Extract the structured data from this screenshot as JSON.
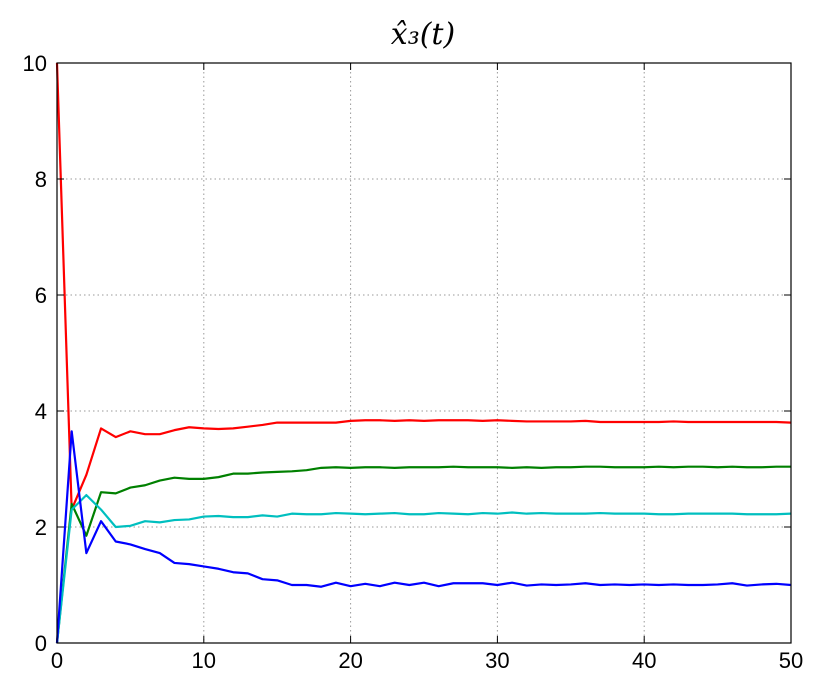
{
  "chart_data": {
    "type": "line",
    "title": "x̂₃(t)",
    "xlabel": "",
    "ylabel": "",
    "xlim": [
      0,
      50
    ],
    "ylim": [
      0,
      10
    ],
    "xticks": [
      0,
      10,
      20,
      30,
      40,
      50
    ],
    "yticks": [
      0,
      2,
      4,
      6,
      8,
      10
    ],
    "grid": true,
    "x": [
      0,
      1,
      2,
      3,
      4,
      5,
      6,
      7,
      8,
      9,
      10,
      11,
      12,
      13,
      14,
      15,
      16,
      17,
      18,
      19,
      20,
      21,
      22,
      23,
      24,
      25,
      26,
      27,
      28,
      29,
      30,
      31,
      32,
      33,
      34,
      35,
      36,
      37,
      38,
      39,
      40,
      41,
      42,
      43,
      44,
      45,
      46,
      47,
      48,
      49,
      50
    ],
    "series": [
      {
        "color": "#ff0000",
        "values": [
          10,
          2.3,
          2.9,
          3.7,
          3.55,
          3.65,
          3.6,
          3.6,
          3.67,
          3.72,
          3.7,
          3.69,
          3.7,
          3.73,
          3.76,
          3.8,
          3.8,
          3.8,
          3.8,
          3.8,
          3.83,
          3.84,
          3.84,
          3.83,
          3.84,
          3.83,
          3.84,
          3.84,
          3.84,
          3.83,
          3.84,
          3.83,
          3.82,
          3.82,
          3.82,
          3.82,
          3.83,
          3.81,
          3.81,
          3.81,
          3.81,
          3.81,
          3.82,
          3.81,
          3.81,
          3.81,
          3.81,
          3.81,
          3.81,
          3.81,
          3.8
        ]
      },
      {
        "color": "#008000",
        "values": [
          0,
          2.4,
          1.85,
          2.6,
          2.58,
          2.68,
          2.72,
          2.8,
          2.85,
          2.83,
          2.83,
          2.86,
          2.92,
          2.92,
          2.94,
          2.95,
          2.96,
          2.98,
          3.02,
          3.03,
          3.02,
          3.03,
          3.03,
          3.02,
          3.03,
          3.03,
          3.03,
          3.04,
          3.03,
          3.03,
          3.03,
          3.02,
          3.03,
          3.02,
          3.03,
          3.03,
          3.04,
          3.04,
          3.03,
          3.03,
          3.03,
          3.04,
          3.03,
          3.04,
          3.04,
          3.03,
          3.04,
          3.03,
          3.03,
          3.04,
          3.04
        ]
      },
      {
        "color": "#00bfbf",
        "values": [
          0,
          2.3,
          2.55,
          2.3,
          2.0,
          2.02,
          2.1,
          2.08,
          2.12,
          2.13,
          2.18,
          2.19,
          2.17,
          2.17,
          2.2,
          2.18,
          2.23,
          2.22,
          2.22,
          2.24,
          2.23,
          2.22,
          2.23,
          2.24,
          2.22,
          2.22,
          2.24,
          2.23,
          2.22,
          2.24,
          2.23,
          2.25,
          2.23,
          2.24,
          2.23,
          2.23,
          2.23,
          2.24,
          2.23,
          2.23,
          2.23,
          2.22,
          2.22,
          2.23,
          2.23,
          2.23,
          2.23,
          2.22,
          2.22,
          2.22,
          2.23
        ]
      },
      {
        "color": "#0000ff",
        "values": [
          0,
          3.65,
          1.55,
          2.1,
          1.75,
          1.7,
          1.62,
          1.55,
          1.38,
          1.36,
          1.32,
          1.28,
          1.22,
          1.2,
          1.1,
          1.08,
          1.0,
          1.0,
          0.97,
          1.04,
          0.98,
          1.02,
          0.98,
          1.04,
          1.0,
          1.04,
          0.98,
          1.03,
          1.03,
          1.03,
          1.0,
          1.04,
          0.99,
          1.01,
          1.0,
          1.01,
          1.03,
          1.0,
          1.01,
          1.0,
          1.01,
          1.0,
          1.01,
          1.0,
          1.0,
          1.01,
          1.03,
          0.99,
          1.01,
          1.02,
          1.0
        ]
      }
    ]
  }
}
